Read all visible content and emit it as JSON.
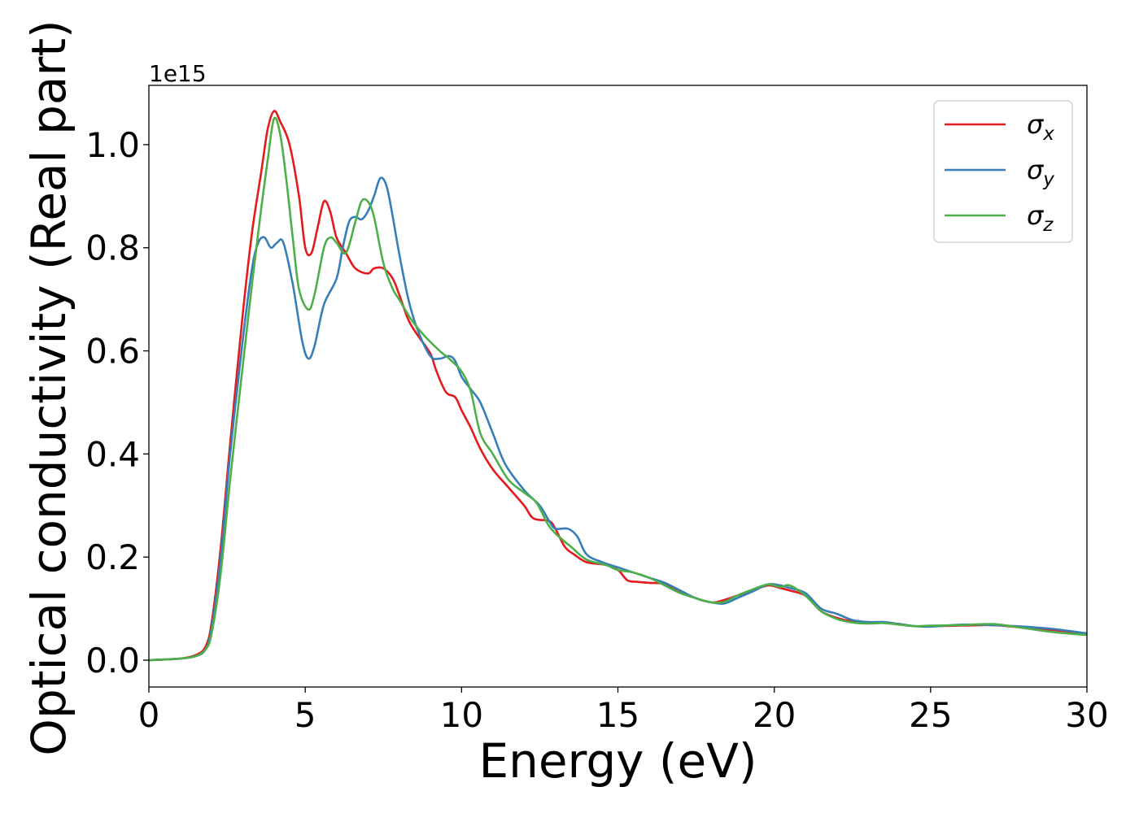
{
  "chart_data": {
    "type": "line",
    "xlabel": "Energy (eV)",
    "ylabel": "Optical conductivity (Real part)",
    "offset_text": "1e15",
    "xlim": [
      0,
      30
    ],
    "ylim": [
      -0.052,
      1.115
    ],
    "y_scale_factor": 1000000000000000.0,
    "xticks": [
      0,
      5,
      10,
      15,
      20,
      25,
      30
    ],
    "xtick_labels": [
      "0",
      "5",
      "10",
      "15",
      "20",
      "25",
      "30"
    ],
    "yticks": [
      0.0,
      0.2,
      0.4,
      0.6,
      0.8,
      1.0
    ],
    "ytick_labels": [
      "0.0",
      "0.2",
      "0.4",
      "0.6",
      "0.8",
      "1.0"
    ],
    "grid": false,
    "legend_position": "top-right",
    "series": [
      {
        "name": "σx",
        "sym": "σ",
        "sub": "x",
        "color": "#e41a1c",
        "points": [
          [
            0,
            0
          ],
          [
            1,
            0.003
          ],
          [
            1.5,
            0.01
          ],
          [
            1.8,
            0.025
          ],
          [
            2,
            0.07
          ],
          [
            2.3,
            0.22
          ],
          [
            2.6,
            0.42
          ],
          [
            3,
            0.67
          ],
          [
            3.3,
            0.83
          ],
          [
            3.6,
            0.95
          ],
          [
            3.8,
            1.03
          ],
          [
            4,
            1.065
          ],
          [
            4.2,
            1.045
          ],
          [
            4.5,
            1.0
          ],
          [
            4.8,
            0.9
          ],
          [
            5,
            0.8
          ],
          [
            5.2,
            0.79
          ],
          [
            5.4,
            0.84
          ],
          [
            5.6,
            0.89
          ],
          [
            5.8,
            0.87
          ],
          [
            6,
            0.82
          ],
          [
            6.3,
            0.79
          ],
          [
            6.6,
            0.76
          ],
          [
            7,
            0.75
          ],
          [
            7.2,
            0.76
          ],
          [
            7.5,
            0.76
          ],
          [
            7.8,
            0.74
          ],
          [
            8,
            0.71
          ],
          [
            8.3,
            0.66
          ],
          [
            8.6,
            0.63
          ],
          [
            9,
            0.595
          ],
          [
            9.2,
            0.56
          ],
          [
            9.5,
            0.52
          ],
          [
            9.8,
            0.51
          ],
          [
            10,
            0.485
          ],
          [
            10.3,
            0.45
          ],
          [
            10.6,
            0.41
          ],
          [
            11,
            0.37
          ],
          [
            11.5,
            0.335
          ],
          [
            12,
            0.3
          ],
          [
            12.3,
            0.275
          ],
          [
            12.8,
            0.27
          ],
          [
            13,
            0.255
          ],
          [
            13.3,
            0.22
          ],
          [
            13.6,
            0.205
          ],
          [
            14,
            0.19
          ],
          [
            14.6,
            0.185
          ],
          [
            15,
            0.175
          ],
          [
            15.3,
            0.155
          ],
          [
            15.6,
            0.152
          ],
          [
            16,
            0.15
          ],
          [
            16.5,
            0.148
          ],
          [
            17,
            0.133
          ],
          [
            17.5,
            0.12
          ],
          [
            18,
            0.112
          ],
          [
            18.3,
            0.115
          ],
          [
            18.8,
            0.125
          ],
          [
            19.3,
            0.135
          ],
          [
            19.8,
            0.145
          ],
          [
            20.2,
            0.14
          ],
          [
            20.5,
            0.135
          ],
          [
            21,
            0.125
          ],
          [
            21.5,
            0.095
          ],
          [
            22,
            0.082
          ],
          [
            22.5,
            0.075
          ],
          [
            23,
            0.072
          ],
          [
            23.5,
            0.073
          ],
          [
            24,
            0.07
          ],
          [
            24.5,
            0.066
          ],
          [
            25,
            0.066
          ],
          [
            26,
            0.067
          ],
          [
            27,
            0.068
          ],
          [
            28,
            0.063
          ],
          [
            29,
            0.058
          ],
          [
            30,
            0.052
          ]
        ]
      },
      {
        "name": "σy",
        "sym": "σ",
        "sub": "y",
        "color": "#377eb8",
        "points": [
          [
            0,
            0
          ],
          [
            1,
            0.003
          ],
          [
            1.5,
            0.008
          ],
          [
            1.8,
            0.02
          ],
          [
            2,
            0.06
          ],
          [
            2.3,
            0.2
          ],
          [
            2.6,
            0.4
          ],
          [
            3,
            0.62
          ],
          [
            3.3,
            0.76
          ],
          [
            3.5,
            0.81
          ],
          [
            3.7,
            0.82
          ],
          [
            3.9,
            0.8
          ],
          [
            4.1,
            0.81
          ],
          [
            4.3,
            0.81
          ],
          [
            4.6,
            0.73
          ],
          [
            4.9,
            0.62
          ],
          [
            5.1,
            0.585
          ],
          [
            5.3,
            0.61
          ],
          [
            5.6,
            0.69
          ],
          [
            6,
            0.74
          ],
          [
            6.2,
            0.8
          ],
          [
            6.4,
            0.85
          ],
          [
            6.6,
            0.86
          ],
          [
            6.8,
            0.855
          ],
          [
            7,
            0.87
          ],
          [
            7.2,
            0.9
          ],
          [
            7.4,
            0.935
          ],
          [
            7.6,
            0.92
          ],
          [
            7.8,
            0.86
          ],
          [
            8,
            0.79
          ],
          [
            8.3,
            0.7
          ],
          [
            8.6,
            0.64
          ],
          [
            9,
            0.59
          ],
          [
            9.3,
            0.585
          ],
          [
            9.6,
            0.59
          ],
          [
            9.8,
            0.58
          ],
          [
            10,
            0.55
          ],
          [
            10.3,
            0.525
          ],
          [
            10.6,
            0.5
          ],
          [
            11,
            0.44
          ],
          [
            11.4,
            0.38
          ],
          [
            12,
            0.33
          ],
          [
            12.5,
            0.3
          ],
          [
            12.8,
            0.27
          ],
          [
            13,
            0.255
          ],
          [
            13.4,
            0.255
          ],
          [
            13.7,
            0.24
          ],
          [
            14,
            0.205
          ],
          [
            14.5,
            0.19
          ],
          [
            15,
            0.18
          ],
          [
            15.5,
            0.17
          ],
          [
            16,
            0.16
          ],
          [
            16.5,
            0.15
          ],
          [
            17,
            0.135
          ],
          [
            17.5,
            0.12
          ],
          [
            18,
            0.112
          ],
          [
            18.4,
            0.11
          ],
          [
            18.8,
            0.12
          ],
          [
            19.3,
            0.133
          ],
          [
            19.8,
            0.147
          ],
          [
            20.2,
            0.145
          ],
          [
            20.5,
            0.14
          ],
          [
            21,
            0.13
          ],
          [
            21.5,
            0.1
          ],
          [
            22,
            0.09
          ],
          [
            22.5,
            0.078
          ],
          [
            23,
            0.074
          ],
          [
            23.5,
            0.074
          ],
          [
            24,
            0.07
          ],
          [
            24.5,
            0.066
          ],
          [
            25,
            0.065
          ],
          [
            26,
            0.069
          ],
          [
            27,
            0.068
          ],
          [
            28,
            0.065
          ],
          [
            29,
            0.06
          ],
          [
            30,
            0.052
          ]
        ]
      },
      {
        "name": "σz",
        "sym": "σ",
        "sub": "z",
        "color": "#4daf4a",
        "points": [
          [
            0,
            0
          ],
          [
            1,
            0.003
          ],
          [
            1.5,
            0.008
          ],
          [
            1.8,
            0.02
          ],
          [
            2,
            0.05
          ],
          [
            2.3,
            0.17
          ],
          [
            2.6,
            0.35
          ],
          [
            3,
            0.57
          ],
          [
            3.3,
            0.73
          ],
          [
            3.6,
            0.88
          ],
          [
            3.8,
            0.97
          ],
          [
            4,
            1.05
          ],
          [
            4.2,
            1.02
          ],
          [
            4.4,
            0.93
          ],
          [
            4.6,
            0.82
          ],
          [
            4.8,
            0.72
          ],
          [
            5.1,
            0.68
          ],
          [
            5.3,
            0.71
          ],
          [
            5.6,
            0.8
          ],
          [
            5.8,
            0.82
          ],
          [
            6,
            0.81
          ],
          [
            6.3,
            0.79
          ],
          [
            6.6,
            0.85
          ],
          [
            6.8,
            0.89
          ],
          [
            7,
            0.89
          ],
          [
            7.2,
            0.86
          ],
          [
            7.5,
            0.77
          ],
          [
            7.8,
            0.72
          ],
          [
            8,
            0.7
          ],
          [
            8.4,
            0.66
          ],
          [
            8.8,
            0.63
          ],
          [
            9.3,
            0.6
          ],
          [
            9.6,
            0.585
          ],
          [
            10,
            0.56
          ],
          [
            10.3,
            0.52
          ],
          [
            10.6,
            0.44
          ],
          [
            11,
            0.4
          ],
          [
            11.5,
            0.35
          ],
          [
            12,
            0.325
          ],
          [
            12.4,
            0.305
          ],
          [
            12.8,
            0.26
          ],
          [
            13.2,
            0.235
          ],
          [
            13.5,
            0.22
          ],
          [
            14,
            0.195
          ],
          [
            14.6,
            0.185
          ],
          [
            15,
            0.175
          ],
          [
            15.5,
            0.17
          ],
          [
            16,
            0.16
          ],
          [
            16.5,
            0.145
          ],
          [
            17,
            0.13
          ],
          [
            17.5,
            0.12
          ],
          [
            18,
            0.112
          ],
          [
            18.4,
            0.113
          ],
          [
            18.8,
            0.125
          ],
          [
            19.3,
            0.137
          ],
          [
            19.8,
            0.147
          ],
          [
            20.2,
            0.142
          ],
          [
            20.5,
            0.145
          ],
          [
            21,
            0.125
          ],
          [
            21.5,
            0.095
          ],
          [
            22,
            0.08
          ],
          [
            22.5,
            0.073
          ],
          [
            23,
            0.071
          ],
          [
            23.5,
            0.072
          ],
          [
            24,
            0.069
          ],
          [
            24.5,
            0.066
          ],
          [
            25,
            0.067
          ],
          [
            26,
            0.068
          ],
          [
            27,
            0.07
          ],
          [
            28,
            0.062
          ],
          [
            29,
            0.054
          ],
          [
            30,
            0.049
          ]
        ]
      }
    ]
  }
}
